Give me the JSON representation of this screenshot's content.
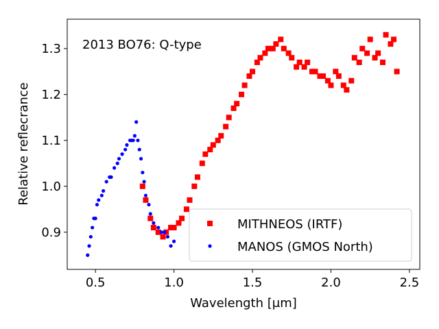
{
  "chart_data": {
    "type": "scatter",
    "annotation": "2013 BO76: Q-type",
    "xlabel": "Wavelength [μm]",
    "ylabel": "Relative reflecrance",
    "xlim": [
      0.32,
      2.566
    ],
    "ylim": [
      0.819,
      1.364
    ],
    "xticks": [
      {
        "value": 0.5,
        "label": "0.5"
      },
      {
        "value": 1.0,
        "label": "1.0"
      },
      {
        "value": 1.5,
        "label": "1.5"
      },
      {
        "value": 2.0,
        "label": "2.0"
      },
      {
        "value": 2.5,
        "label": "2.5"
      }
    ],
    "yticks": [
      {
        "value": 0.9,
        "label": "0.9"
      },
      {
        "value": 1.0,
        "label": "1.0"
      },
      1.1,
      1.2,
      1.3
    ],
    "legend": "lower right",
    "series": [
      {
        "name": "MITHNEOS (IRTF)",
        "color": "#ff0000",
        "marker": "square",
        "x": [
          0.8,
          0.82,
          0.85,
          0.87,
          0.9,
          0.93,
          0.95,
          0.98,
          1.0,
          1.03,
          1.05,
          1.08,
          1.1,
          1.13,
          1.15,
          1.18,
          1.2,
          1.23,
          1.25,
          1.28,
          1.3,
          1.33,
          1.35,
          1.38,
          1.4,
          1.43,
          1.45,
          1.48,
          1.5,
          1.53,
          1.55,
          1.58,
          1.6,
          1.63,
          1.65,
          1.68,
          1.7,
          1.73,
          1.75,
          1.78,
          1.8,
          1.83,
          1.85,
          1.88,
          1.9,
          1.93,
          1.95,
          1.98,
          2.0,
          2.03,
          2.05,
          2.08,
          2.1,
          2.13,
          2.15,
          2.18,
          2.2,
          2.23,
          2.25,
          2.28,
          2.3,
          2.33,
          2.35,
          2.38,
          2.4,
          2.42
        ],
        "y": [
          1.0,
          0.97,
          0.93,
          0.91,
          0.9,
          0.89,
          0.9,
          0.91,
          0.91,
          0.92,
          0.93,
          0.95,
          0.97,
          1.0,
          1.02,
          1.05,
          1.07,
          1.08,
          1.09,
          1.1,
          1.11,
          1.13,
          1.15,
          1.17,
          1.18,
          1.2,
          1.22,
          1.24,
          1.25,
          1.27,
          1.28,
          1.29,
          1.3,
          1.3,
          1.31,
          1.32,
          1.3,
          1.29,
          1.28,
          1.26,
          1.27,
          1.26,
          1.27,
          1.25,
          1.25,
          1.24,
          1.24,
          1.23,
          1.22,
          1.25,
          1.24,
          1.22,
          1.21,
          1.23,
          1.28,
          1.27,
          1.3,
          1.29,
          1.32,
          1.28,
          1.29,
          1.27,
          1.33,
          1.31,
          1.32,
          1.25
        ]
      },
      {
        "name": "MANOS (GMOS North)",
        "color": "#0000ff",
        "marker": "circle",
        "x": [
          0.45,
          0.46,
          0.47,
          0.48,
          0.49,
          0.5,
          0.51,
          0.52,
          0.54,
          0.55,
          0.57,
          0.59,
          0.6,
          0.62,
          0.64,
          0.65,
          0.67,
          0.69,
          0.7,
          0.72,
          0.73,
          0.74,
          0.75,
          0.76,
          0.77,
          0.78,
          0.79,
          0.8,
          0.81,
          0.82,
          0.84,
          0.85,
          0.87,
          0.9,
          0.92,
          0.94,
          0.96,
          0.98,
          1.0
        ],
        "y": [
          0.85,
          0.87,
          0.89,
          0.91,
          0.93,
          0.93,
          0.96,
          0.97,
          0.98,
          0.99,
          1.01,
          1.02,
          1.02,
          1.04,
          1.05,
          1.06,
          1.07,
          1.08,
          1.09,
          1.1,
          1.1,
          1.1,
          1.11,
          1.14,
          1.1,
          1.08,
          1.06,
          1.03,
          1.01,
          0.98,
          0.96,
          0.94,
          0.92,
          0.91,
          0.9,
          0.9,
          0.89,
          0.87,
          0.88
        ]
      }
    ]
  }
}
